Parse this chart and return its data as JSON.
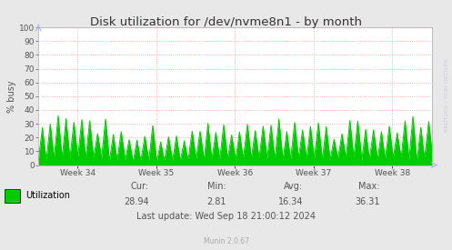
{
  "title": "Disk utilization for /dev/nvme8n1 - by month",
  "ylabel": "% busy",
  "bg_color": "#e8e8e8",
  "plot_bg_color": "#ffffff",
  "grid_color": "#ff9999",
  "line_color": "#00cc00",
  "fill_color": "#00cc00",
  "ylim": [
    0,
    100
  ],
  "yticks": [
    0,
    10,
    20,
    30,
    40,
    50,
    60,
    70,
    80,
    90,
    100
  ],
  "xtick_labels": [
    "Week 34",
    "Week 35",
    "Week 36",
    "Week 37",
    "Week 38"
  ],
  "xtick_positions": [
    0.1,
    0.3,
    0.5,
    0.7,
    0.9
  ],
  "legend_label": "Utilization",
  "legend_color": "#00cc00",
  "cur_val": "28.94",
  "min_val": "2.81",
  "avg_val": "16.34",
  "max_val": "36.31",
  "last_update": "Last update: Wed Sep 18 21:00:12 2024",
  "watermark": "RRDTOOL / TOBI OETIKER",
  "munin_version": "Munin 2.0.67",
  "spine_color": "#aaaaaa",
  "title_color": "#333333",
  "text_color": "#555555",
  "n_cycles": 50,
  "peak_val": 30,
  "valley_val": 3
}
